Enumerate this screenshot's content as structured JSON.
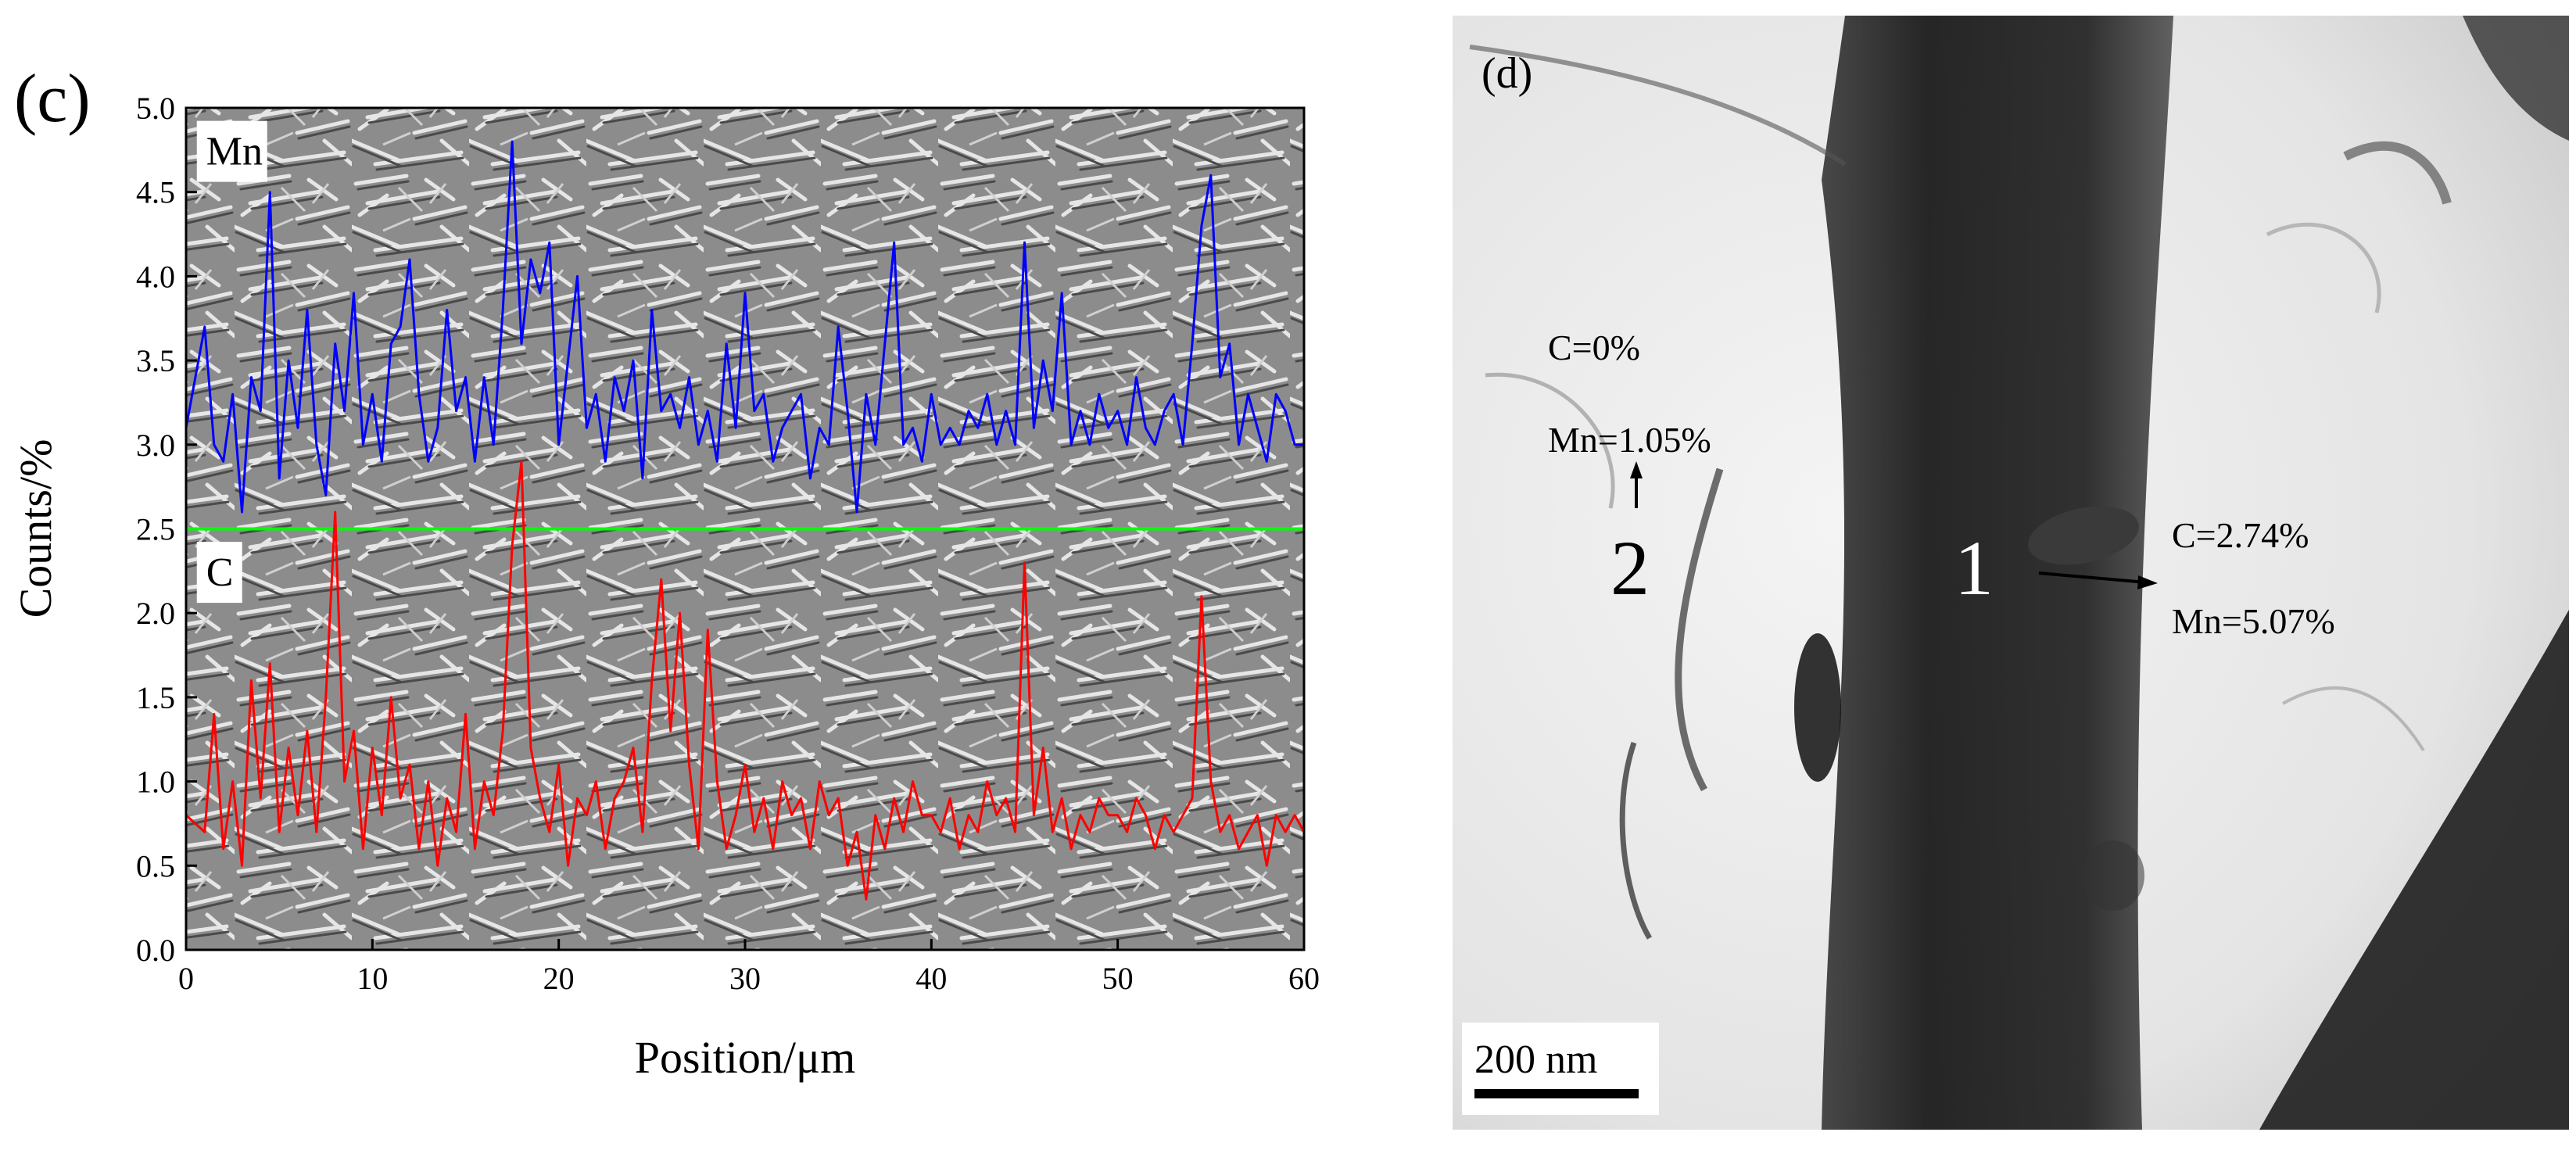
{
  "panel_c": {
    "label": "(c)",
    "background": "SEM micrograph (grey martensitic microstructure)"
  },
  "panel_d": {
    "label": "(d)",
    "background": "TEM bright-field micrograph",
    "scale_bar": "200 nm",
    "annotations": {
      "point1": {
        "number": "1",
        "c": "C=2.74%",
        "mn": "Mn=5.07%"
      },
      "point2": {
        "number": "2",
        "c": "C=0%",
        "mn": "Mn=1.05%"
      }
    }
  },
  "colors": {
    "mn": "#0000ff",
    "c": "#ff0000",
    "scan_line": "#00ff00",
    "axis": "#000000"
  },
  "chart_data": {
    "type": "line",
    "title": "",
    "xlabel": "Position/μm",
    "ylabel": "Counts/%",
    "xlim": [
      0,
      60
    ],
    "ylim": [
      0,
      5.0
    ],
    "xticks": [
      0,
      10,
      20,
      30,
      40,
      50,
      60
    ],
    "yticks": [
      0.0,
      0.5,
      1.0,
      1.5,
      2.0,
      2.5,
      3.0,
      3.5,
      4.0,
      4.5,
      5.0
    ],
    "xtick_labels": [
      "0",
      "10",
      "20",
      "30",
      "40",
      "50",
      "60"
    ],
    "ytick_labels": [
      "0.0",
      "0.5",
      "1.0",
      "1.5",
      "2.0",
      "2.5",
      "3.0",
      "3.5",
      "4.0",
      "4.5",
      "5.0"
    ],
    "scan_line_y": 2.5,
    "series": [
      {
        "name": "Mn",
        "x": [
          0,
          1,
          1.5,
          2,
          2.5,
          3,
          3.5,
          4,
          4.5,
          5,
          5.5,
          6,
          6.5,
          7,
          7.5,
          8,
          8.5,
          9,
          9.5,
          10,
          10.5,
          11,
          11.5,
          12,
          12.5,
          13,
          13.5,
          14,
          14.5,
          15,
          15.5,
          16,
          16.5,
          17,
          17.5,
          18,
          18.5,
          19,
          19.5,
          20,
          20.5,
          21,
          21.5,
          22,
          22.5,
          23,
          23.5,
          24,
          24.5,
          25,
          25.5,
          26,
          26.5,
          27,
          27.5,
          28,
          28.5,
          29,
          29.5,
          30,
          30.5,
          31,
          31.5,
          32,
          32.5,
          33,
          33.5,
          34,
          34.5,
          35,
          35.5,
          36,
          36.5,
          37,
          37.5,
          38,
          38.5,
          39,
          39.5,
          40,
          40.5,
          41,
          41.5,
          42,
          42.5,
          43,
          43.5,
          44,
          44.5,
          45,
          45.5,
          46,
          46.5,
          47,
          47.5,
          48,
          48.5,
          49,
          49.5,
          50,
          50.5,
          51,
          51.5,
          52,
          52.5,
          53,
          53.5,
          54,
          54.5,
          55,
          55.5,
          56,
          56.5,
          57,
          57.5,
          58,
          58.5,
          59,
          59.5,
          60
        ],
        "values": [
          3.1,
          3.7,
          3.0,
          2.9,
          3.3,
          2.6,
          3.4,
          3.2,
          4.5,
          2.8,
          3.5,
          3.1,
          3.8,
          3.0,
          2.7,
          3.6,
          3.2,
          3.9,
          3.0,
          3.3,
          2.9,
          3.6,
          3.7,
          4.1,
          3.3,
          2.9,
          3.1,
          3.8,
          3.2,
          3.4,
          2.9,
          3.4,
          3.0,
          3.8,
          4.8,
          3.6,
          4.1,
          3.9,
          4.2,
          3.0,
          3.5,
          4.0,
          3.1,
          3.3,
          2.9,
          3.4,
          3.2,
          3.5,
          2.8,
          3.8,
          3.2,
          3.3,
          3.1,
          3.4,
          3.0,
          3.2,
          2.9,
          3.6,
          3.1,
          3.9,
          3.2,
          3.3,
          2.9,
          3.1,
          3.2,
          3.3,
          2.8,
          3.1,
          3.0,
          3.7,
          3.2,
          2.6,
          3.3,
          3.0,
          3.6,
          4.2,
          3.0,
          3.1,
          2.9,
          3.3,
          3.0,
          3.1,
          3.0,
          3.2,
          3.1,
          3.3,
          3.0,
          3.2,
          3.0,
          4.2,
          3.1,
          3.5,
          3.2,
          3.9,
          3.0,
          3.2,
          3.0,
          3.3,
          3.1,
          3.2,
          3.0,
          3.4,
          3.1,
          3.0,
          3.2,
          3.3,
          3.0,
          3.6,
          4.3,
          4.6,
          3.4,
          3.6,
          3.0,
          3.3,
          3.1,
          2.9,
          3.3,
          3.2,
          3.0,
          3.0
        ]
      },
      {
        "name": "C",
        "x": [
          0,
          1,
          1.5,
          2,
          2.5,
          3,
          3.5,
          4,
          4.5,
          5,
          5.5,
          6,
          6.5,
          7,
          7.5,
          8,
          8.5,
          9,
          9.5,
          10,
          10.5,
          11,
          11.5,
          12,
          12.5,
          13,
          13.5,
          14,
          14.5,
          15,
          15.5,
          16,
          16.5,
          17,
          17.5,
          18,
          18.5,
          19,
          19.5,
          20,
          20.5,
          21,
          21.5,
          22,
          22.5,
          23,
          23.5,
          24,
          24.5,
          25,
          25.5,
          26,
          26.5,
          27,
          27.5,
          28,
          28.5,
          29,
          29.5,
          30,
          30.5,
          31,
          31.5,
          32,
          32.5,
          33,
          33.5,
          34,
          34.5,
          35,
          35.5,
          36,
          36.5,
          37,
          37.5,
          38,
          38.5,
          39,
          39.5,
          40,
          40.5,
          41,
          41.5,
          42,
          42.5,
          43,
          43.5,
          44,
          44.5,
          45,
          45.5,
          46,
          46.5,
          47,
          47.5,
          48,
          48.5,
          49,
          49.5,
          50,
          50.5,
          51,
          51.5,
          52,
          52.5,
          53,
          53.5,
          54,
          54.5,
          55,
          55.5,
          56,
          56.5,
          57,
          57.5,
          58,
          58.5,
          59,
          59.5,
          60
        ],
        "values": [
          0.8,
          0.7,
          1.4,
          0.6,
          1.0,
          0.5,
          1.6,
          0.9,
          1.7,
          0.7,
          1.2,
          0.8,
          1.3,
          0.7,
          1.5,
          2.6,
          1.0,
          1.3,
          0.6,
          1.2,
          0.8,
          1.5,
          0.9,
          1.1,
          0.6,
          1.0,
          0.5,
          0.9,
          0.7,
          1.4,
          0.6,
          1.0,
          0.8,
          1.3,
          2.4,
          2.9,
          1.2,
          0.9,
          0.7,
          1.1,
          0.5,
          0.9,
          0.8,
          1.0,
          0.6,
          0.9,
          1.0,
          1.2,
          0.7,
          1.6,
          2.2,
          1.3,
          2.0,
          1.1,
          0.6,
          1.9,
          1.0,
          0.6,
          0.8,
          1.1,
          0.7,
          0.9,
          0.6,
          1.0,
          0.8,
          0.9,
          0.6,
          1.0,
          0.8,
          0.9,
          0.5,
          0.7,
          0.3,
          0.8,
          0.6,
          0.9,
          0.7,
          1.0,
          0.8,
          0.8,
          0.7,
          0.9,
          0.6,
          0.8,
          0.7,
          1.0,
          0.8,
          0.9,
          0.7,
          2.3,
          0.8,
          1.2,
          0.7,
          0.9,
          0.6,
          0.8,
          0.7,
          0.9,
          0.8,
          0.8,
          0.7,
          0.9,
          0.8,
          0.6,
          0.8,
          0.7,
          0.8,
          0.9,
          2.1,
          1.0,
          0.7,
          0.8,
          0.6,
          0.7,
          0.8,
          0.5,
          0.8,
          0.7,
          0.8,
          0.7
        ]
      }
    ],
    "series_labels": [
      {
        "text": "Mn",
        "x": 1.5,
        "y": 4.7
      },
      {
        "text": "C",
        "x": 1.5,
        "y": 2.2
      }
    ]
  }
}
